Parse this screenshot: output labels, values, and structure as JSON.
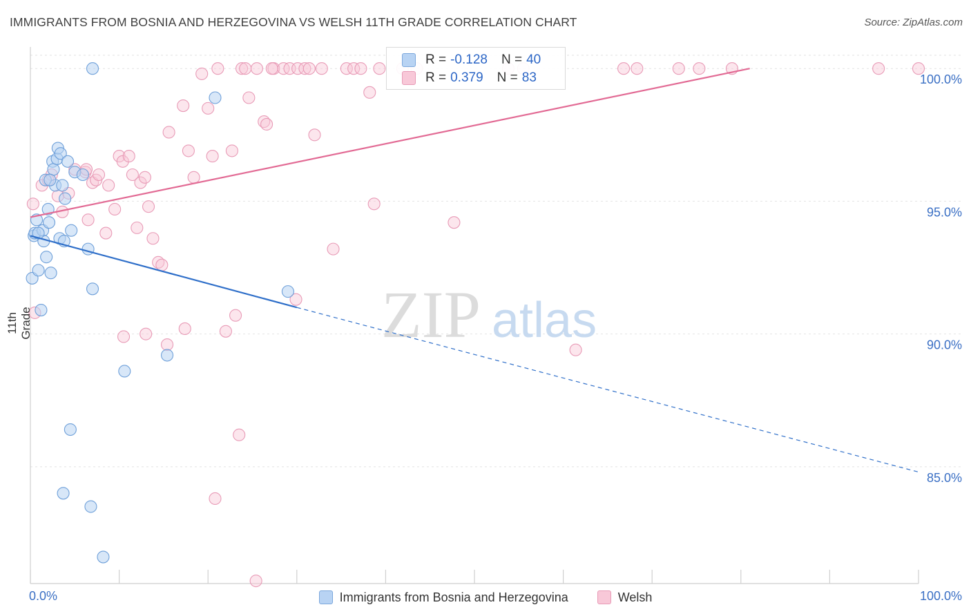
{
  "header": {
    "title": "IMMIGRANTS FROM BOSNIA AND HERZEGOVINA VS WELSH 11TH GRADE CORRELATION CHART",
    "source": "Source: ZipAtlas.com"
  },
  "watermark": {
    "zip": "ZIP",
    "atlas": "atlas"
  },
  "legend": {
    "r_label": "R =",
    "n_label": "N =",
    "series": [
      {
        "name": "Immigrants from Bosnia and Herzegovina",
        "r": "-0.128",
        "n": "40",
        "color": "#6d9fd9"
      },
      {
        "name": "Welsh",
        "r": "0.379",
        "n": "83",
        "color": "#e8799f"
      }
    ]
  },
  "chart_data": {
    "type": "scatter",
    "title": "IMMIGRANTS FROM BOSNIA AND HERZEGOVINA VS WELSH 11TH GRADE CORRELATION CHART",
    "xlabel": "",
    "ylabel": "11th Grade",
    "xlim": [
      0,
      100
    ],
    "ylim": [
      80.6,
      100.5
    ],
    "x_tick_labels": [
      "0.0%",
      "100.0%"
    ],
    "y_ticks": [
      100,
      95,
      90,
      85
    ],
    "y_tick_labels": [
      "100.0%",
      "95.0%",
      "90.0%",
      "85.0%"
    ],
    "grid": true,
    "series": [
      {
        "name": "Immigrants from Bosnia and Herzegovina",
        "r": -0.128,
        "n": 40,
        "color": "#6d9fd9",
        "trend": {
          "x": [
            0,
            30,
            100
          ],
          "y": [
            93.7,
            91.0,
            84.8
          ],
          "solid_until": 30
        },
        "points": [
          [
            0.2,
            92.1
          ],
          [
            0.4,
            93.7
          ],
          [
            0.5,
            93.8
          ],
          [
            0.7,
            94.3
          ],
          [
            0.9,
            92.4
          ],
          [
            1.2,
            90.9
          ],
          [
            1.4,
            93.9
          ],
          [
            1.5,
            93.5
          ],
          [
            1.7,
            95.8
          ],
          [
            1.8,
            92.9
          ],
          [
            2.0,
            94.7
          ],
          [
            2.1,
            94.2
          ],
          [
            2.3,
            92.3
          ],
          [
            2.5,
            96.5
          ],
          [
            2.6,
            96.2
          ],
          [
            2.8,
            95.6
          ],
          [
            3.0,
            96.6
          ],
          [
            3.1,
            97.0
          ],
          [
            3.3,
            93.6
          ],
          [
            3.4,
            96.8
          ],
          [
            3.6,
            95.6
          ],
          [
            3.8,
            93.5
          ],
          [
            3.9,
            95.1
          ],
          [
            4.2,
            96.5
          ],
          [
            4.6,
            93.9
          ],
          [
            5.0,
            96.1
          ],
          [
            5.9,
            96.0
          ],
          [
            6.5,
            93.2
          ],
          [
            7.0,
            100.0
          ],
          [
            7.0,
            91.7
          ],
          [
            10.6,
            88.6
          ],
          [
            15.4,
            89.2
          ],
          [
            20.8,
            98.9
          ],
          [
            29.0,
            91.6
          ],
          [
            4.5,
            86.4
          ],
          [
            3.7,
            84.0
          ],
          [
            6.8,
            83.5
          ],
          [
            8.2,
            81.6
          ],
          [
            0.9,
            93.8
          ],
          [
            2.2,
            95.8
          ]
        ]
      },
      {
        "name": "Welsh",
        "r": 0.379,
        "n": 83,
        "color": "#e8799f",
        "trend": {
          "x": [
            0,
            81
          ],
          "y": [
            94.4,
            100.0
          ],
          "solid_until": 81
        },
        "points": [
          [
            0.3,
            94.9
          ],
          [
            0.5,
            90.8
          ],
          [
            1.3,
            95.6
          ],
          [
            2.0,
            95.8
          ],
          [
            2.4,
            96.0
          ],
          [
            3.1,
            95.2
          ],
          [
            3.6,
            94.6
          ],
          [
            4.3,
            95.3
          ],
          [
            5.0,
            96.2
          ],
          [
            6.2,
            96.1
          ],
          [
            6.5,
            94.3
          ],
          [
            7.0,
            95.7
          ],
          [
            7.4,
            95.8
          ],
          [
            7.7,
            96.0
          ],
          [
            8.5,
            93.8
          ],
          [
            8.8,
            95.6
          ],
          [
            9.5,
            94.7
          ],
          [
            10.0,
            96.7
          ],
          [
            10.4,
            96.5
          ],
          [
            11.1,
            96.7
          ],
          [
            11.5,
            96.0
          ],
          [
            12.0,
            94.0
          ],
          [
            12.4,
            95.7
          ],
          [
            12.9,
            95.9
          ],
          [
            13.3,
            94.8
          ],
          [
            13.8,
            93.6
          ],
          [
            14.4,
            92.7
          ],
          [
            14.8,
            92.6
          ],
          [
            15.6,
            97.6
          ],
          [
            15.4,
            89.6
          ],
          [
            17.2,
            98.6
          ],
          [
            17.8,
            96.9
          ],
          [
            18.4,
            95.9
          ],
          [
            19.3,
            99.8
          ],
          [
            20.0,
            98.5
          ],
          [
            20.5,
            96.7
          ],
          [
            22.0,
            90.1
          ],
          [
            22.7,
            96.9
          ],
          [
            23.8,
            100.0
          ],
          [
            24.2,
            100.0
          ],
          [
            24.6,
            98.9
          ],
          [
            25.5,
            100.0
          ],
          [
            26.3,
            98.0
          ],
          [
            26.6,
            97.9
          ],
          [
            27.4,
            100.0
          ],
          [
            28.5,
            100.0
          ],
          [
            29.2,
            100.0
          ],
          [
            30.1,
            100.0
          ],
          [
            30.9,
            100.0
          ],
          [
            31.4,
            100.0
          ],
          [
            32.0,
            97.5
          ],
          [
            32.8,
            100.0
          ],
          [
            34.1,
            93.2
          ],
          [
            35.6,
            100.0
          ],
          [
            36.4,
            100.0
          ],
          [
            37.2,
            100.0
          ],
          [
            38.2,
            99.1
          ],
          [
            38.7,
            94.9
          ],
          [
            41.9,
            100.0
          ],
          [
            43.5,
            100.0
          ],
          [
            47.7,
            94.2
          ],
          [
            53.8,
            100.0
          ],
          [
            55.5,
            100.0
          ],
          [
            61.4,
            89.4
          ],
          [
            66.8,
            100.0
          ],
          [
            68.3,
            100.0
          ],
          [
            73.0,
            100.0
          ],
          [
            75.3,
            100.0
          ],
          [
            79.0,
            100.0
          ],
          [
            95.5,
            100.0
          ],
          [
            100.0,
            100.0
          ],
          [
            10.5,
            89.9
          ],
          [
            13.0,
            90.0
          ],
          [
            17.4,
            90.2
          ],
          [
            23.1,
            90.7
          ],
          [
            29.9,
            91.3
          ],
          [
            23.5,
            86.2
          ],
          [
            20.8,
            83.8
          ],
          [
            25.4,
            80.7
          ],
          [
            27.2,
            100.0
          ],
          [
            39.3,
            100.0
          ],
          [
            21.1,
            100.0
          ],
          [
            6.3,
            96.2
          ]
        ]
      }
    ]
  }
}
